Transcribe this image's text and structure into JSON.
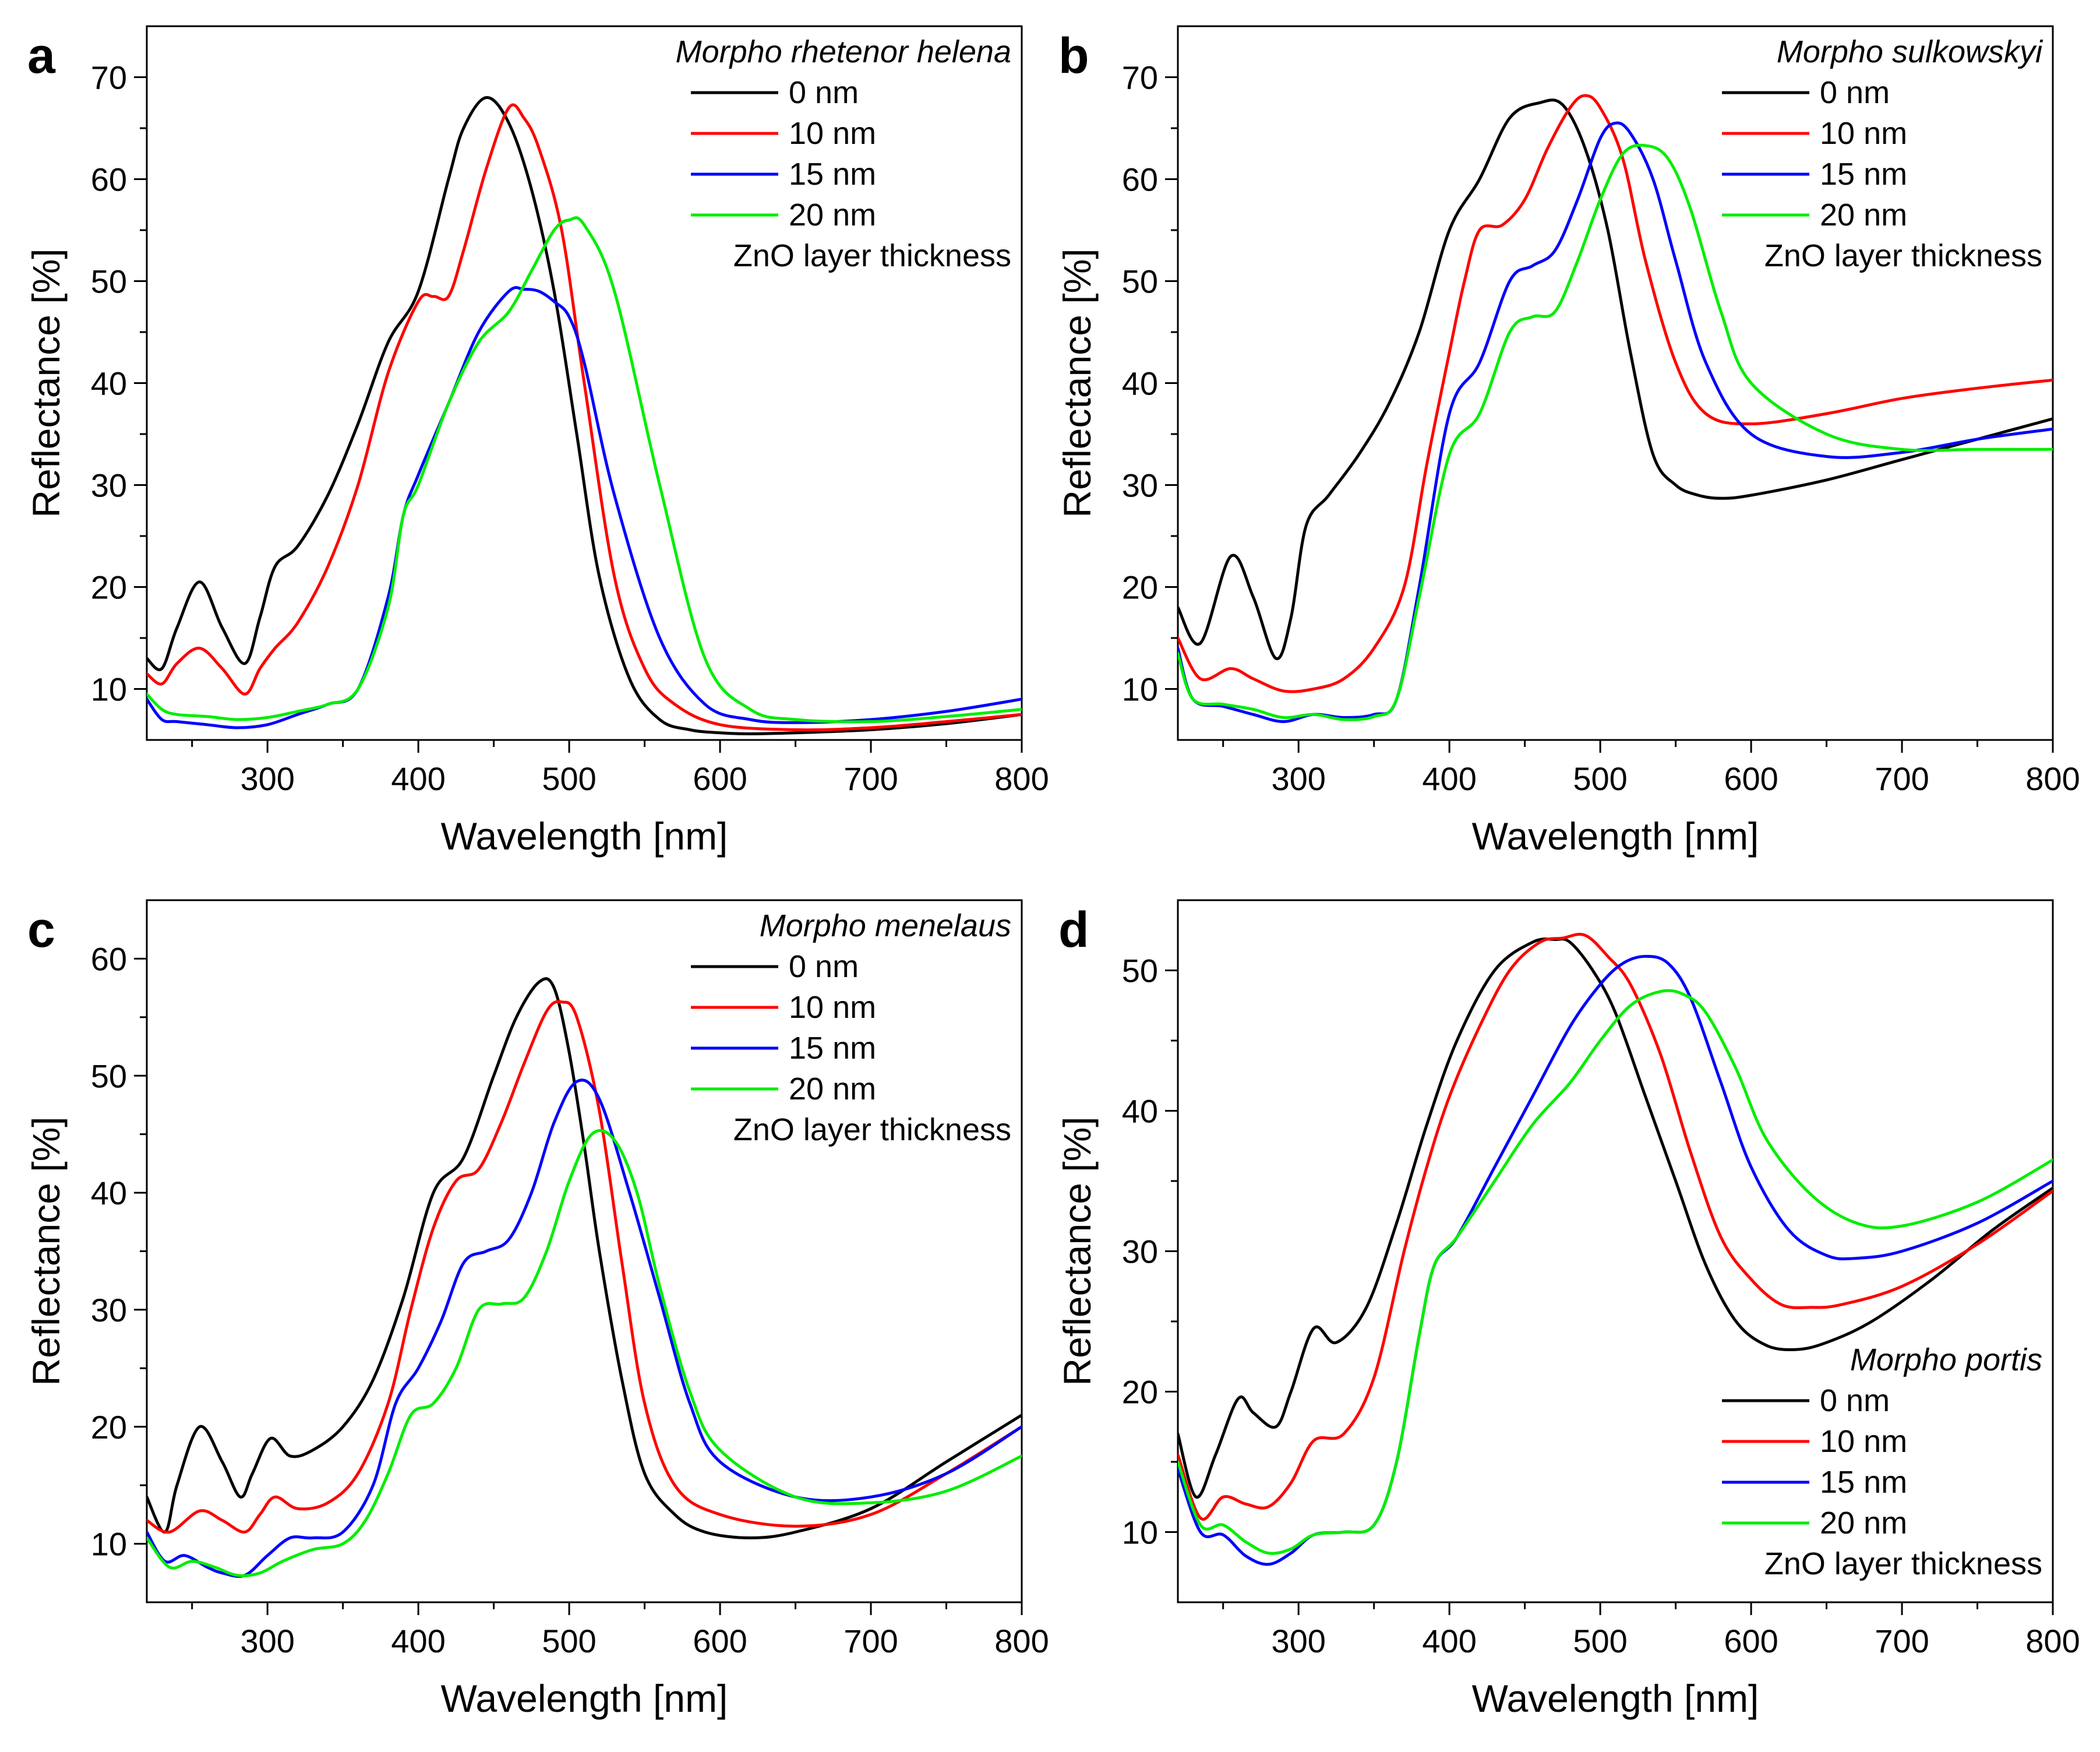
{
  "colors": {
    "black": "#000000",
    "red": "#ff0000",
    "blue": "#0000ff",
    "green": "#00ee00"
  },
  "legend_footer": "ZnO layer thickness",
  "chart_data": [
    {
      "type": "line",
      "panel": "a",
      "title": "Morpho rhetenor helena",
      "xlabel": "Wavelength [nm]",
      "ylabel": "Reflectance [%]",
      "xlim": [
        220,
        800
      ],
      "ylim": [
        5,
        75
      ],
      "xticks": [
        300,
        400,
        500,
        600,
        700,
        800
      ],
      "yticks": [
        10,
        20,
        30,
        40,
        50,
        60,
        70
      ],
      "legend_position": "top-right",
      "series": [
        {
          "name": "0 nm",
          "color": "#000000",
          "x": [
            220,
            230,
            240,
            255,
            270,
            285,
            295,
            305,
            320,
            340,
            360,
            380,
            400,
            420,
            430,
            445,
            460,
            475,
            490,
            505,
            520,
            540,
            560,
            580,
            600,
            620,
            650,
            700,
            750,
            800
          ],
          "values": [
            13,
            12,
            16,
            20.5,
            16,
            12.5,
            17,
            22,
            24,
            29,
            36,
            44,
            49,
            60,
            65,
            68,
            65.5,
            59,
            49,
            35,
            21,
            11,
            7,
            6,
            5.7,
            5.6,
            5.7,
            6,
            6.6,
            7.5
          ]
        },
        {
          "name": "10 nm",
          "color": "#ff0000",
          "x": [
            220,
            230,
            240,
            255,
            270,
            285,
            295,
            305,
            320,
            340,
            360,
            380,
            400,
            410,
            420,
            430,
            445,
            460,
            470,
            480,
            495,
            510,
            530,
            550,
            570,
            600,
            650,
            700,
            750,
            800
          ],
          "values": [
            11.5,
            10.5,
            12.5,
            14,
            12,
            9.5,
            12,
            14,
            16.5,
            22,
            30,
            41,
            48,
            48.5,
            48.5,
            53,
            61,
            67,
            66,
            63,
            55,
            40,
            21,
            12,
            8.5,
            6.5,
            6,
            6.2,
            6.8,
            7.5
          ]
        },
        {
          "name": "15 nm",
          "color": "#0000ff",
          "x": [
            220,
            230,
            240,
            260,
            280,
            300,
            320,
            340,
            360,
            380,
            390,
            400,
            420,
            440,
            460,
            470,
            480,
            490,
            500,
            510,
            530,
            560,
            590,
            620,
            650,
            700,
            750,
            800
          ],
          "values": [
            9,
            7,
            6.8,
            6.5,
            6.2,
            6.5,
            7.5,
            8.5,
            10,
            19,
            27,
            31,
            38,
            45,
            49,
            49.2,
            49,
            48,
            46.5,
            42,
            29,
            15,
            8.5,
            7,
            6.7,
            7,
            7.8,
            9
          ]
        },
        {
          "name": "20 nm",
          "color": "#00ee00",
          "x": [
            220,
            230,
            240,
            260,
            280,
            300,
            320,
            340,
            360,
            380,
            390,
            400,
            420,
            440,
            460,
            475,
            490,
            500,
            510,
            530,
            560,
            590,
            620,
            650,
            700,
            750,
            800
          ],
          "values": [
            9.5,
            8,
            7.5,
            7.3,
            7,
            7.2,
            7.8,
            8.5,
            10,
            18,
            27,
            30,
            38,
            44,
            47,
            51,
            55,
            56,
            55.5,
            49,
            30,
            13,
            8,
            7,
            6.8,
            7.3,
            8
          ]
        }
      ]
    },
    {
      "type": "line",
      "panel": "b",
      "title": "Morpho sulkowskyi",
      "xlabel": "Wavelength [nm]",
      "ylabel": "Reflectance [%]",
      "xlim": [
        220,
        800
      ],
      "ylim": [
        5,
        75
      ],
      "xticks": [
        300,
        400,
        500,
        600,
        700,
        800
      ],
      "yticks": [
        10,
        20,
        30,
        40,
        50,
        60,
        70
      ],
      "legend_position": "top-right",
      "series": [
        {
          "name": "0 nm",
          "color": "#000000",
          "x": [
            220,
            235,
            255,
            270,
            285,
            295,
            305,
            320,
            340,
            360,
            380,
            400,
            420,
            440,
            460,
            475,
            490,
            505,
            520,
            535,
            550,
            565,
            580,
            600,
            650,
            700,
            750,
            800
          ],
          "values": [
            18,
            14.5,
            23,
            19,
            13,
            17,
            26,
            29,
            33,
            38,
            45,
            55,
            60,
            66,
            67.5,
            67.3,
            63,
            55,
            43,
            33,
            30,
            29,
            28.7,
            29,
            30.5,
            32.5,
            34.5,
            36.5
          ]
        },
        {
          "name": "10 nm",
          "color": "#ff0000",
          "x": [
            220,
            235,
            255,
            270,
            290,
            310,
            330,
            350,
            370,
            385,
            400,
            410,
            420,
            435,
            450,
            465,
            480,
            490,
            500,
            515,
            530,
            550,
            570,
            600,
            650,
            700,
            750,
            800
          ],
          "values": [
            15,
            11,
            12,
            11,
            9.8,
            10,
            11,
            14,
            20,
            32,
            43,
            50,
            55,
            55.5,
            58,
            63,
            67,
            68.2,
            67,
            62,
            52,
            42,
            37,
            36,
            37,
            38.5,
            39.5,
            40.3
          ]
        },
        {
          "name": "15 nm",
          "color": "#0000ff",
          "x": [
            220,
            230,
            250,
            270,
            290,
            310,
            330,
            350,
            365,
            380,
            400,
            420,
            440,
            455,
            470,
            485,
            500,
            510,
            520,
            535,
            550,
            570,
            600,
            650,
            700,
            750,
            800
          ],
          "values": [
            14,
            9,
            8.3,
            7.5,
            6.8,
            7.5,
            7.2,
            7.5,
            9,
            20,
            37,
            42,
            50,
            51.5,
            53,
            58,
            64,
            65.5,
            64.5,
            60,
            52,
            42,
            35,
            32.8,
            33.2,
            34.5,
            35.5
          ]
        },
        {
          "name": "20 nm",
          "color": "#00ee00",
          "x": [
            220,
            230,
            250,
            270,
            290,
            310,
            330,
            350,
            365,
            380,
            400,
            420,
            440,
            455,
            470,
            485,
            500,
            515,
            530,
            545,
            560,
            580,
            600,
            650,
            700,
            750,
            800
          ],
          "values": [
            13.5,
            9,
            8.5,
            8,
            7.2,
            7.5,
            7,
            7.3,
            9,
            19,
            33,
            37,
            45,
            46.5,
            47,
            52,
            58,
            62.5,
            63.3,
            62,
            57,
            47,
            40,
            35,
            33.5,
            33.5,
            33.5
          ]
        }
      ]
    },
    {
      "type": "line",
      "panel": "c",
      "title": "Morpho menelaus",
      "xlabel": "Wavelength [nm]",
      "ylabel": "Reflectance [%]",
      "xlim": [
        220,
        800
      ],
      "ylim": [
        5,
        65
      ],
      "xticks": [
        300,
        400,
        500,
        600,
        700,
        800
      ],
      "yticks": [
        10,
        20,
        30,
        40,
        50,
        60
      ],
      "legend_position": "top-right",
      "series": [
        {
          "name": "0 nm",
          "color": "#000000",
          "x": [
            220,
            232,
            240,
            255,
            270,
            282,
            290,
            302,
            315,
            330,
            350,
            370,
            390,
            410,
            430,
            450,
            465,
            480,
            490,
            500,
            510,
            520,
            535,
            550,
            570,
            590,
            620,
            650,
            700,
            750,
            800
          ],
          "values": [
            14,
            11,
            15,
            20,
            17,
            14,
            16,
            19,
            17.5,
            18,
            20,
            24,
            31,
            40,
            43,
            50,
            55,
            58,
            57.5,
            52,
            44,
            35,
            24,
            16,
            12.5,
            11,
            10.5,
            11,
            13,
            17,
            21
          ]
        },
        {
          "name": "10 nm",
          "color": "#ff0000",
          "x": [
            220,
            235,
            255,
            270,
            285,
            295,
            305,
            320,
            340,
            360,
            380,
            395,
            410,
            425,
            440,
            455,
            470,
            485,
            495,
            505,
            520,
            535,
            550,
            570,
            600,
            650,
            700,
            750,
            800
          ],
          "values": [
            12,
            11,
            12.8,
            12,
            11,
            12.5,
            14,
            13,
            13.5,
            16,
            22,
            30,
            37,
            41,
            42,
            46,
            51,
            55.5,
            56.3,
            55,
            47,
            34,
            22,
            15,
            12.5,
            11.5,
            12.5,
            16,
            20
          ]
        },
        {
          "name": "15 nm",
          "color": "#0000ff",
          "x": [
            220,
            232,
            245,
            260,
            270,
            285,
            300,
            315,
            330,
            350,
            370,
            385,
            400,
            415,
            430,
            445,
            460,
            475,
            490,
            505,
            520,
            540,
            560,
            580,
            600,
            650,
            700,
            750,
            800
          ],
          "values": [
            11,
            8.5,
            9,
            8,
            7.5,
            7.3,
            9,
            10.5,
            10.5,
            11,
            15,
            22,
            25,
            29,
            34,
            35,
            36,
            40,
            46,
            49.5,
            48,
            40,
            31,
            22,
            17,
            14,
            14,
            16,
            20
          ]
        },
        {
          "name": "20 nm",
          "color": "#00ee00",
          "x": [
            220,
            235,
            250,
            265,
            280,
            295,
            310,
            330,
            350,
            365,
            380,
            395,
            410,
            425,
            440,
            455,
            470,
            485,
            500,
            515,
            530,
            545,
            560,
            580,
            600,
            650,
            700,
            750,
            800
          ],
          "values": [
            10.5,
            8,
            8.5,
            8,
            7.3,
            7.5,
            8.5,
            9.5,
            10,
            12,
            16,
            21,
            22,
            25,
            30,
            30.5,
            31,
            35,
            41,
            45,
            44.5,
            40,
            32,
            23,
            18,
            14,
            13.5,
            14.5,
            17.5
          ]
        }
      ]
    },
    {
      "type": "line",
      "panel": "d",
      "title": "Morpho portis",
      "xlabel": "Wavelength [nm]",
      "ylabel": "Reflectance [%]",
      "xlim": [
        220,
        800
      ],
      "ylim": [
        5,
        55
      ],
      "xticks": [
        300,
        400,
        500,
        600,
        700,
        800
      ],
      "yticks": [
        10,
        20,
        30,
        40,
        50
      ],
      "legend_position": "bottom-right",
      "series": [
        {
          "name": "0 nm",
          "color": "#000000",
          "x": [
            220,
            232,
            245,
            260,
            270,
            285,
            295,
            310,
            325,
            345,
            365,
            385,
            405,
            430,
            455,
            470,
            480,
            495,
            510,
            530,
            550,
            570,
            590,
            610,
            630,
            650,
            680,
            720,
            760,
            800
          ],
          "values": [
            17,
            12.5,
            15.5,
            19.5,
            18.5,
            17.5,
            20,
            24.5,
            23.5,
            26,
            32,
            39,
            45,
            50,
            52,
            52.2,
            52,
            50,
            47,
            41,
            35,
            29,
            25,
            23.3,
            23,
            23.5,
            25,
            28,
            31.5,
            34.5
          ]
        },
        {
          "name": "10 nm",
          "color": "#ff0000",
          "x": [
            220,
            235,
            250,
            265,
            280,
            295,
            310,
            330,
            350,
            370,
            385,
            400,
            420,
            440,
            460,
            475,
            490,
            505,
            520,
            540,
            560,
            580,
            600,
            620,
            640,
            660,
            700,
            750,
            800
          ],
          "values": [
            15.5,
            11,
            12.5,
            12,
            11.8,
            13.5,
            16.5,
            17,
            21,
            30,
            36,
            41,
            46,
            50,
            52,
            52.3,
            52.5,
            51,
            49,
            44,
            37,
            31,
            28,
            26.2,
            26,
            26.2,
            27.5,
            30.5,
            34.3
          ]
        },
        {
          "name": "15 nm",
          "color": "#0000ff",
          "x": [
            220,
            235,
            250,
            265,
            280,
            295,
            310,
            330,
            350,
            365,
            380,
            390,
            405,
            430,
            455,
            480,
            500,
            515,
            530,
            545,
            560,
            580,
            600,
            625,
            650,
            670,
            700,
            750,
            800
          ],
          "values": [
            14.5,
            10,
            9.8,
            8.3,
            7.7,
            8.5,
            9.8,
            10,
            10.5,
            15,
            24,
            29,
            31,
            36,
            41,
            46,
            49,
            50.5,
            51,
            50.5,
            48,
            42,
            36,
            31.5,
            29.7,
            29.5,
            30,
            32,
            35
          ]
        },
        {
          "name": "20 nm",
          "color": "#00ee00",
          "x": [
            220,
            235,
            250,
            265,
            280,
            295,
            310,
            330,
            350,
            365,
            380,
            390,
            405,
            430,
            455,
            480,
            500,
            520,
            540,
            555,
            570,
            590,
            610,
            640,
            670,
            700,
            750,
            800
          ],
          "values": [
            15,
            10.5,
            10.5,
            9.3,
            8.5,
            8.8,
            9.8,
            10,
            10.5,
            15,
            24,
            29,
            31,
            35,
            39,
            42,
            45,
            47.5,
            48.5,
            48.3,
            47,
            43,
            38,
            34,
            32,
            31.8,
            33.5,
            36.5
          ]
        }
      ]
    }
  ]
}
